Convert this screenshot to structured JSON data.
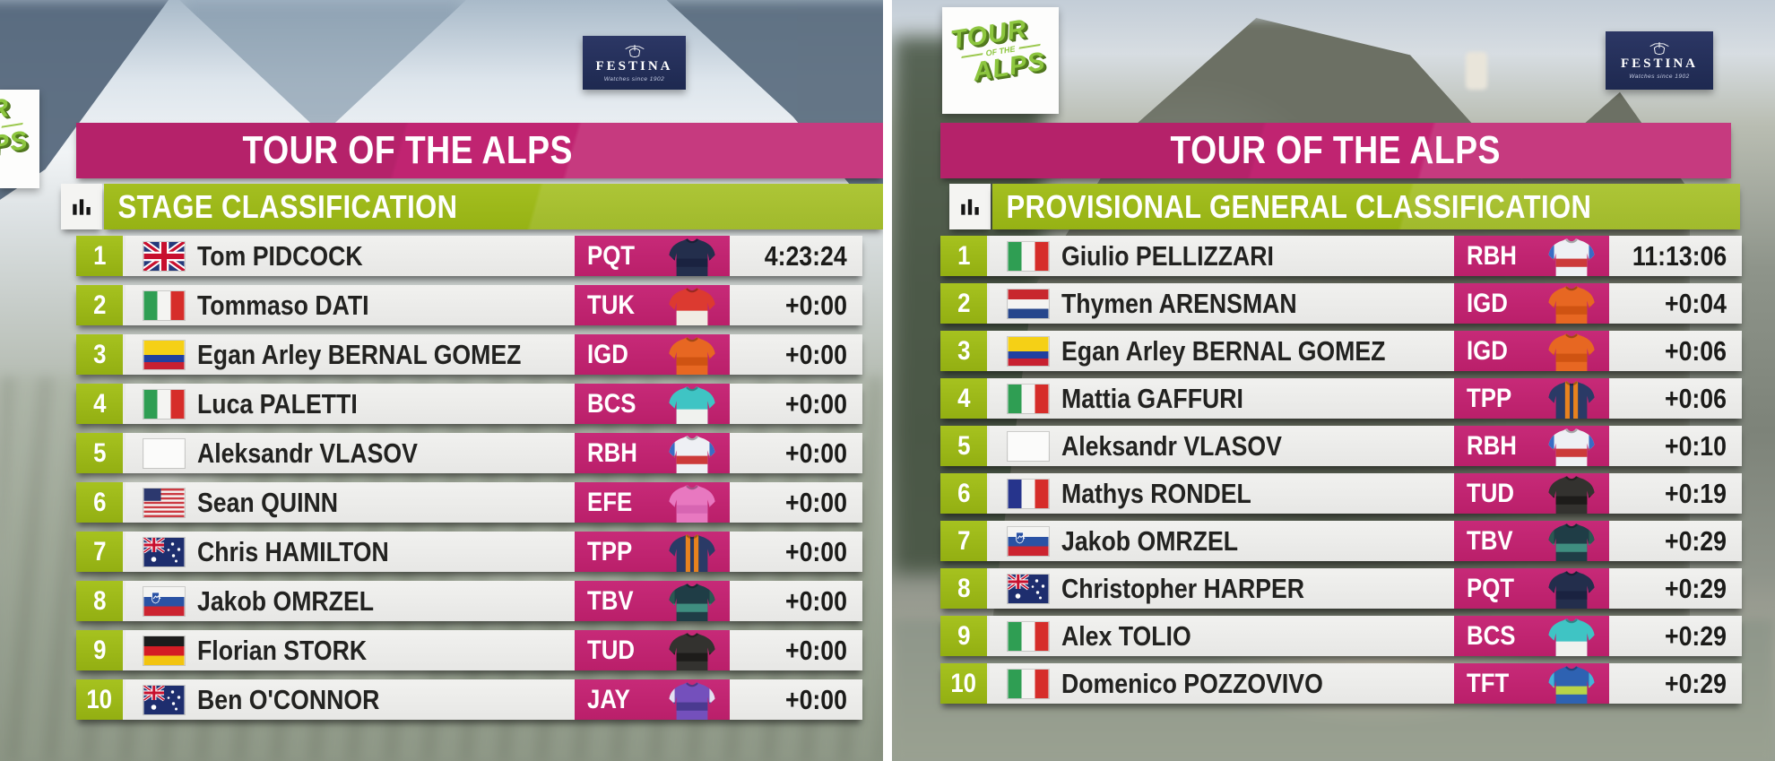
{
  "colors": {
    "pink": "#c02471",
    "green": "#9cb918",
    "festina_navy": "#1e2950",
    "logo_green": "#8dc63f",
    "row_bg": "#ececea"
  },
  "brand": {
    "festina": {
      "name": "FESTINA",
      "tagline": "Watches since 1902"
    },
    "race_logo": {
      "line1": "TOUR",
      "line2": "OF THE",
      "line3": "ALPS"
    }
  },
  "icons": {
    "classification": "bar-chart-icon",
    "crest": "festina-crest-icon"
  },
  "panels": [
    {
      "title": "TOUR OF THE ALPS",
      "subtitle": "STAGE CLASSIFICATION",
      "rows": [
        {
          "rank": "1",
          "flag": "gb",
          "name": "Tom PIDCOCK",
          "team": "PQT",
          "time": "4:23:24"
        },
        {
          "rank": "2",
          "flag": "it",
          "name": "Tommaso DATI",
          "team": "TUK",
          "time": "+0:00"
        },
        {
          "rank": "3",
          "flag": "co",
          "name": "Egan Arley BERNAL GOMEZ",
          "team": "IGD",
          "time": "+0:00"
        },
        {
          "rank": "4",
          "flag": "it",
          "name": "Luca PALETTI",
          "team": "BCS",
          "time": "+0:00"
        },
        {
          "rank": "5",
          "flag": "none",
          "name": "Aleksandr VLASOV",
          "team": "RBH",
          "time": "+0:00"
        },
        {
          "rank": "6",
          "flag": "us",
          "name": "Sean QUINN",
          "team": "EFE",
          "time": "+0:00"
        },
        {
          "rank": "7",
          "flag": "au",
          "name": "Chris HAMILTON",
          "team": "TPP",
          "time": "+0:00"
        },
        {
          "rank": "8",
          "flag": "si",
          "name": "Jakob OMRZEL",
          "team": "TBV",
          "time": "+0:00"
        },
        {
          "rank": "9",
          "flag": "de",
          "name": "Florian STORK",
          "team": "TUD",
          "time": "+0:00"
        },
        {
          "rank": "10",
          "flag": "au",
          "name": "Ben O'CONNOR",
          "team": "JAY",
          "time": "+0:00"
        }
      ]
    },
    {
      "title": "TOUR OF THE ALPS",
      "subtitle": "PROVISIONAL GENERAL CLASSIFICATION",
      "rows": [
        {
          "rank": "1",
          "flag": "it",
          "name": "Giulio PELLIZZARI",
          "team": "RBH",
          "time": "11:13:06"
        },
        {
          "rank": "2",
          "flag": "nl",
          "name": "Thymen ARENSMAN",
          "team": "IGD",
          "time": "+0:04"
        },
        {
          "rank": "3",
          "flag": "co",
          "name": "Egan Arley BERNAL GOMEZ",
          "team": "IGD",
          "time": "+0:06"
        },
        {
          "rank": "4",
          "flag": "it",
          "name": "Mattia GAFFURI",
          "team": "TPP",
          "time": "+0:06"
        },
        {
          "rank": "5",
          "flag": "none",
          "name": "Aleksandr VLASOV",
          "team": "RBH",
          "time": "+0:10"
        },
        {
          "rank": "6",
          "flag": "fr",
          "name": "Mathys RONDEL",
          "team": "TUD",
          "time": "+0:19"
        },
        {
          "rank": "7",
          "flag": "si",
          "name": "Jakob OMRZEL",
          "team": "TBV",
          "time": "+0:29"
        },
        {
          "rank": "8",
          "flag": "au",
          "name": "Christopher HARPER",
          "team": "PQT",
          "time": "+0:29"
        },
        {
          "rank": "9",
          "flag": "it",
          "name": "Alex TOLIO",
          "team": "BCS",
          "time": "+0:29"
        },
        {
          "rank": "10",
          "flag": "it",
          "name": "Domenico POZZOVIVO",
          "team": "TFT",
          "time": "+0:29"
        }
      ]
    }
  ],
  "teams": {
    "PQT": {
      "main": "#232e4c",
      "sleeve": "#232e4c",
      "accent": "#1a2240",
      "pattern": "band"
    },
    "TUK": {
      "main": "#dc3a30",
      "sleeve": "#dc3a30",
      "accent": "#f0ece4",
      "pattern": "lower"
    },
    "IGD": {
      "main": "#e76722",
      "sleeve": "#e76722",
      "accent": "#cf5312",
      "pattern": "band"
    },
    "BCS": {
      "main": "#3fc4c4",
      "sleeve": "#3fc4c4",
      "accent": "#f0f2ee",
      "pattern": "lower"
    },
    "RBH": {
      "main": "#eef0f4",
      "sleeve": "#3a6cc4",
      "accent": "#cc3a3a",
      "pattern": "band"
    },
    "EFE": {
      "main": "#e878c0",
      "sleeve": "#e878c0",
      "accent": "#d765b2",
      "pattern": "band"
    },
    "TPP": {
      "main": "#2a3a66",
      "sleeve": "#2a3a66",
      "accent": "#e8821e",
      "pattern": "vstripes"
    },
    "TBV": {
      "main": "#1f3d46",
      "sleeve": "#2a5852",
      "accent": "#3f8e80",
      "pattern": "band"
    },
    "TUD": {
      "main": "#33322f",
      "sleeve": "#33322f",
      "accent": "#1d1c1a",
      "pattern": "band"
    },
    "JAY": {
      "main": "#7450bc",
      "sleeve": "#e4e0f0",
      "accent": "#4a3a90",
      "pattern": "band"
    },
    "TFT": {
      "main": "#2e62b2",
      "sleeve": "#44b4d8",
      "accent": "#b8d448",
      "pattern": "band"
    }
  }
}
